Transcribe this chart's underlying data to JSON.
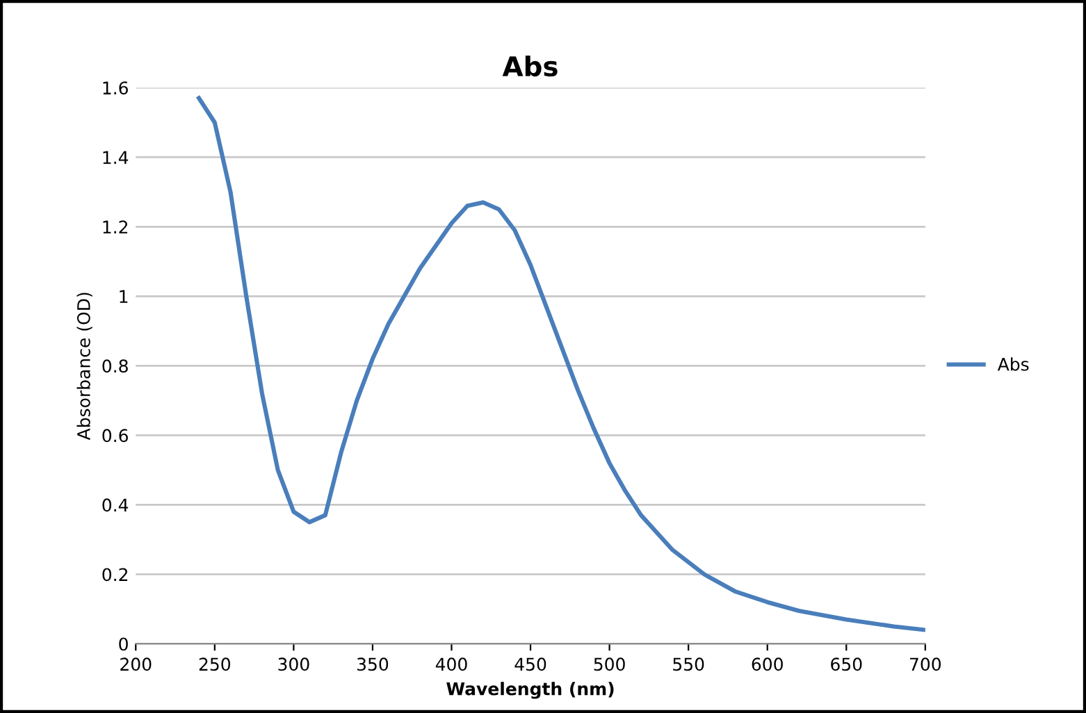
{
  "chart_data": {
    "type": "line",
    "title": "Abs",
    "xlabel": "Wavelength (nm)",
    "ylabel": "Absorbance (OD)",
    "xlim": [
      200,
      700
    ],
    "xticks": [
      200,
      250,
      300,
      350,
      400,
      450,
      500,
      550,
      600,
      650,
      700
    ],
    "ylim": [
      0,
      1.6
    ],
    "yticks": [
      0,
      {
        "value": 0.2,
        "label": "0.2"
      },
      {
        "value": 0.4,
        "label": "0.4"
      },
      {
        "value": 0.6,
        "label": "0.6"
      },
      {
        "value": 0.8,
        "label": "0.8"
      },
      1,
      {
        "value": 1.2,
        "label": "1.2"
      },
      {
        "value": 1.4,
        "label": "1.4"
      },
      {
        "value": 1.6,
        "label": "1.6"
      }
    ],
    "grid": "y",
    "legend": "right",
    "marker": "none",
    "line_style": "solid",
    "x": [
      240,
      250,
      260,
      270,
      280,
      290,
      300,
      310,
      320,
      330,
      340,
      350,
      360,
      380,
      400,
      410,
      420,
      430,
      440,
      450,
      460,
      470,
      480,
      490,
      500,
      510,
      520,
      540,
      560,
      580,
      600,
      620,
      650,
      680,
      700
    ],
    "series": [
      {
        "name": "Abs",
        "color": "#4a7ebb",
        "values": [
          1.57,
          1.5,
          1.3,
          1.0,
          0.72,
          0.5,
          0.38,
          0.35,
          0.37,
          0.55,
          0.7,
          0.82,
          0.92,
          1.08,
          1.21,
          1.26,
          1.27,
          1.25,
          1.19,
          1.09,
          0.97,
          0.85,
          0.73,
          0.62,
          0.52,
          0.44,
          0.37,
          0.27,
          0.2,
          0.15,
          0.12,
          0.095,
          0.07,
          0.05,
          0.04
        ]
      }
    ]
  }
}
